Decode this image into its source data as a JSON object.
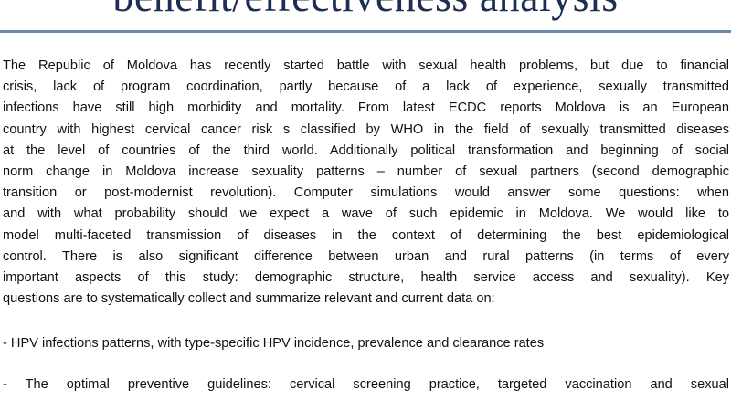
{
  "title": "benefit/effectiveness analysis",
  "paragraph_lines": [
    "The Republic of Moldova has recently started battle with sexual health problems, but due to financial",
    "crisis, lack of program coordination, partly because of a lack of experience, sexually transmitted",
    "infections have still high morbidity and mortality. From latest ECDC reports Moldova is an European",
    "country with highest cervical cancer risk s classified by WHO in the field of sexually transmitted diseases",
    "at the level of countries of the third world. Additionally political transformation and beginning of social",
    "norm change in Moldova increase sexuality patterns – number of sexual partners (second demographic",
    "transition or post-modernist revolution). Computer simulations would answer some questions: when",
    "and with what probability should we expect a wave of such epidemic in Moldova. We would like to",
    "model multi-faceted transmission of diseases in the context of determining the best epidemiological",
    "control. There is also significant difference between urban and rural patterns (in terms of every",
    "important aspects of this study: demographic structure, health service access and sexuality). Key",
    "questions are to systematically collect and summarize relevant and current data on:"
  ],
  "bullets": [
    "-  HPV infections patterns, with type-specific HPV incidence, prevalence and clearance rates",
    "-  The optimal preventive guidelines: cervical screening practice, targeted vaccination and sexual"
  ]
}
